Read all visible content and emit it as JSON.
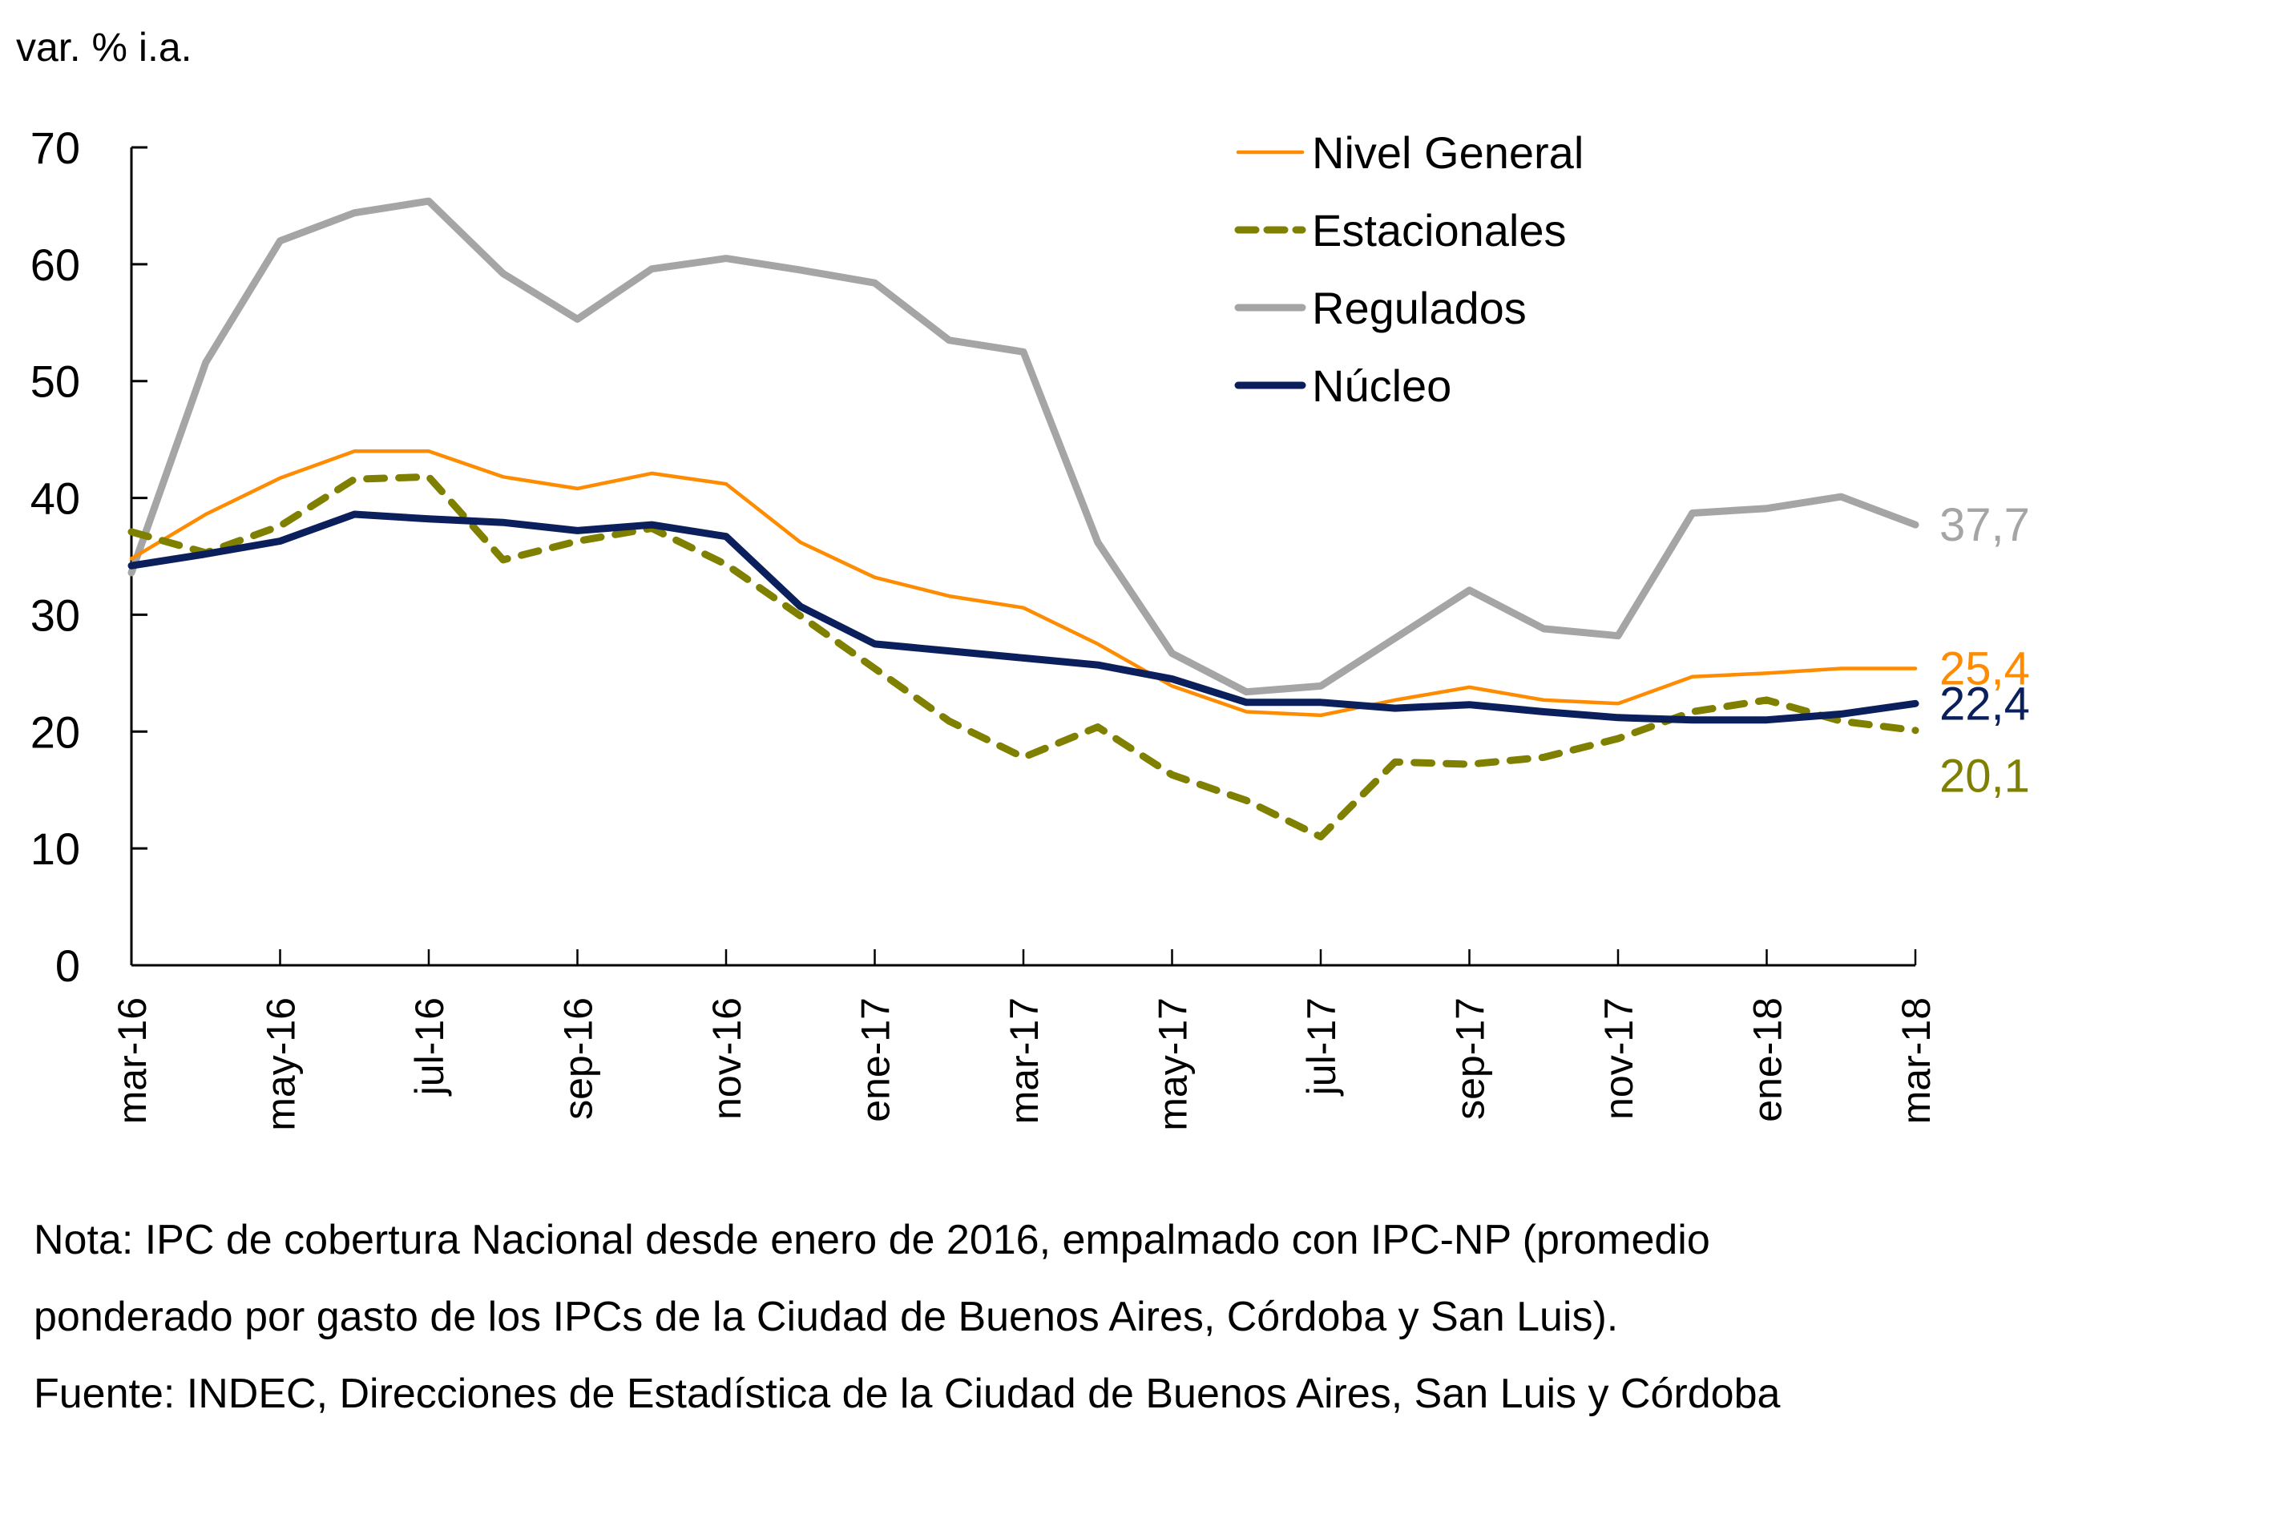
{
  "chart_data": {
    "type": "line",
    "title": "",
    "ylabel": "var. % i.a.",
    "xlabel": "",
    "ylim": [
      0,
      70
    ],
    "yticks": [
      0,
      10,
      20,
      30,
      40,
      50,
      60,
      70
    ],
    "grid": false,
    "legend_position": "top-right",
    "x": [
      "mar-16",
      "abr-16",
      "may-16",
      "jun-16",
      "jul-16",
      "ago-16",
      "sep-16",
      "oct-16",
      "nov-16",
      "dic-16",
      "ene-17",
      "feb-17",
      "mar-17",
      "abr-17",
      "may-17",
      "jun-17",
      "jul-17",
      "ago-17",
      "sep-17",
      "oct-17",
      "nov-17",
      "dic-17",
      "ene-18",
      "feb-18",
      "mar-18"
    ],
    "xtick_labels": [
      "mar-16",
      "may-16",
      "jul-16",
      "sep-16",
      "nov-16",
      "ene-17",
      "mar-17",
      "may-17",
      "jul-17",
      "sep-17",
      "nov-17",
      "ene-18",
      "mar-18"
    ],
    "series": [
      {
        "name": "Nivel General",
        "color": "#FF8C00",
        "style": "solid-thin",
        "end_label": "25,4",
        "values": [
          34.8,
          38.6,
          41.7,
          44.0,
          44.0,
          41.8,
          40.8,
          42.1,
          41.2,
          36.2,
          33.2,
          31.6,
          30.6,
          27.5,
          23.9,
          21.7,
          21.4,
          22.7,
          23.8,
          22.7,
          22.4,
          24.7,
          25.0,
          25.4,
          25.4
        ]
      },
      {
        "name": "Estacionales",
        "color": "#7F7F00",
        "style": "dashed",
        "end_label": "20,1",
        "values": [
          37.1,
          35.3,
          37.6,
          41.6,
          41.8,
          34.7,
          36.3,
          37.4,
          34.3,
          29.9,
          25.4,
          20.9,
          17.8,
          20.4,
          16.3,
          14.1,
          11.0,
          17.4,
          17.2,
          17.8,
          19.4,
          21.7,
          22.7,
          20.9,
          20.1
        ]
      },
      {
        "name": "Regulados",
        "color": "#A5A5A5",
        "style": "solid-thick",
        "end_label": "37,7",
        "values": [
          33.6,
          51.6,
          62.0,
          64.4,
          65.4,
          59.2,
          55.3,
          59.6,
          60.5,
          59.5,
          58.4,
          53.5,
          52.5,
          36.2,
          26.7,
          23.4,
          23.9,
          28.0,
          32.1,
          28.8,
          28.2,
          38.7,
          39.1,
          40.1,
          37.7
        ]
      },
      {
        "name": "Núcleo",
        "color": "#0A1F5C",
        "style": "solid-thick",
        "end_label": "22,4",
        "values": [
          34.2,
          35.2,
          36.3,
          38.6,
          38.2,
          37.9,
          37.2,
          37.7,
          36.7,
          30.7,
          27.5,
          26.9,
          26.3,
          25.7,
          24.5,
          22.5,
          22.5,
          22.0,
          22.3,
          21.7,
          21.2,
          21.0,
          21.0,
          21.5,
          22.4
        ]
      }
    ]
  },
  "notes": {
    "line1": "Nota: IPC de cobertura Nacional desde enero de 2016, empalmado con IPC-NP (promedio",
    "line2": "ponderado por gasto de los IPCs de la Ciudad de Buenos Aires, Córdoba y San Luis).",
    "line3": "Fuente: INDEC, Direcciones de Estadística de la Ciudad de Buenos Aires, San Luis y Córdoba"
  }
}
